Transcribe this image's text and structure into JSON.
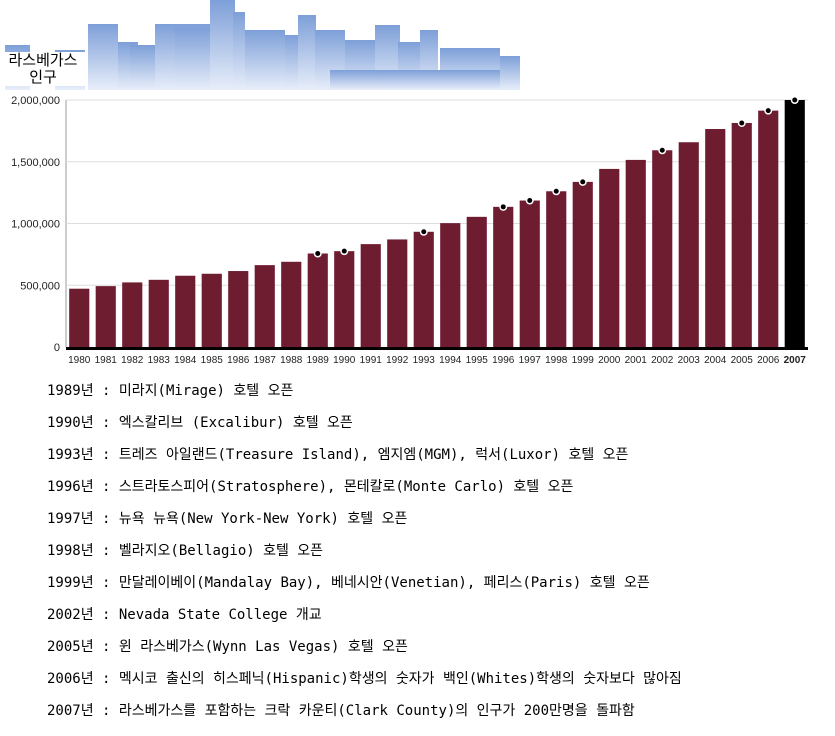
{
  "chart_data": {
    "type": "bar",
    "title": "라스베가스 인구",
    "xlabel": "",
    "ylabel": "",
    "ylim": [
      0,
      2000000
    ],
    "yticks": [
      0,
      500000,
      1000000,
      1500000,
      2000000
    ],
    "ytick_labels": [
      "0",
      "500,000",
      "1,000,000",
      "1,500,000",
      "2,000,000"
    ],
    "grid": true,
    "categories": [
      "1980",
      "1981",
      "1982",
      "1983",
      "1984",
      "1985",
      "1986",
      "1987",
      "1988",
      "1989",
      "1990",
      "1991",
      "1992",
      "1993",
      "1994",
      "1995",
      "1996",
      "1997",
      "1998",
      "1999",
      "2000",
      "2001",
      "2002",
      "2003",
      "2004",
      "2005",
      "2006",
      "2007"
    ],
    "values": [
      472000,
      493000,
      523000,
      544000,
      577000,
      593000,
      615000,
      663000,
      690000,
      757000,
      776000,
      833000,
      871000,
      933000,
      1003000,
      1054000,
      1135000,
      1186000,
      1261000,
      1337000,
      1442000,
      1515000,
      1593000,
      1658000,
      1765000,
      1814000,
      1914000,
      2000000
    ],
    "highlight_category": "2007",
    "marked_years": [
      "1989",
      "1990",
      "1993",
      "1996",
      "1997",
      "1998",
      "1999",
      "2002",
      "2005",
      "2006",
      "2007"
    ],
    "bar_color": "#6e1c30",
    "highlight_color": "#000000"
  },
  "events": [
    "1989년 : 미라지(Mirage) 호텔 오픈",
    "1990년 : 엑스칼리브 (Excalibur) 호텔 오픈",
    "1993년 : 트레즈 아일랜드(Treasure Island), 엠지엠(MGM), 럭서(Luxor) 호텔 오픈",
    "1996년 : 스트라토스피어(Stratosphere), 몬테칼로(Monte Carlo) 호텔 오픈",
    "1997년 : 뉴욕 뉴욕(New York-New York) 호텔 오픈",
    "1998년 : 벨라지오(Bellagio) 호텔 오픈",
    "1999년 : 만달레이베이(Mandalay Bay), 베네시안(Venetian), 페리스(Paris) 호텔 오픈",
    "2002년 : Nevada State College 개교",
    "2005년 : 윈 라스베가스(Wynn Las Vegas) 호텔 오픈",
    "2006년 : 멕시코 출신의 히스페닉(Hispanic)학생의 숫자가 백인(Whites)학생의 숫자보다 많아짐",
    "2007년 : 라스베가스를 포함하는 크락 카운티(Clark County)의 인구가 200만명을 돌파함"
  ]
}
